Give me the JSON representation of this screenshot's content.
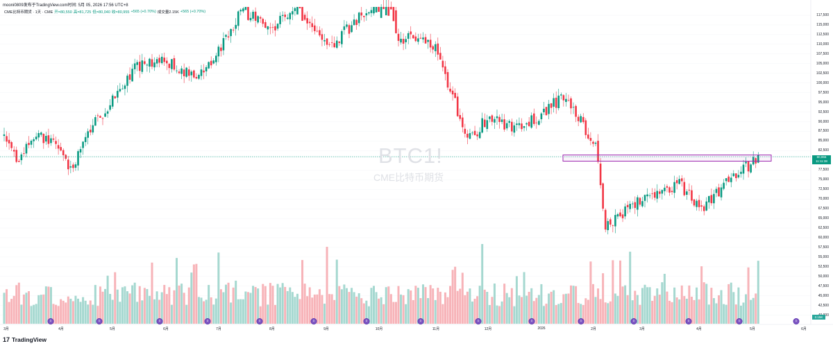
{
  "header": {
    "text": "mooni0809发布于TradingView.com时间: 5月 05, 2026 17:56 UTC+8"
  },
  "legend": {
    "symbol": "CME比特币期货 · 1天 · CME",
    "open": "开=80,550",
    "high": "高=81,725",
    "low": "低=80,040",
    "close": "收=80,955",
    "change": "+565 (+0.70%)",
    "volume": "成交量2.15K",
    "volume_change": "+565 (+0.70%)"
  },
  "watermark": {
    "symbol": "BTC1!",
    "description": "CME比特币期货"
  },
  "price_axis": {
    "ticks": [
      "117,500",
      "115,000",
      "112,500",
      "110,000",
      "107,500",
      "105,000",
      "102,500",
      "100,000",
      "97,500",
      "95,000",
      "92,500",
      "90,000",
      "87,500",
      "85,000",
      "82,500",
      "77,500",
      "75,000",
      "72,500",
      "70,000",
      "67,500",
      "65,000",
      "62,500",
      "60,000",
      "57,500",
      "55,000",
      "52,500",
      "50,000",
      "47,500",
      "45,000",
      "42,500",
      "40,000"
    ],
    "last_price": "80,955",
    "countdown": "11:11:38",
    "volume_value": "2.15K"
  },
  "time_axis": {
    "ticks": [
      "3月",
      "4月",
      "5月",
      "6月",
      "7月",
      "8月",
      "9月",
      "10月",
      "11月",
      "12月",
      "2026",
      "2月",
      "3月",
      "4月",
      "5月",
      "6月"
    ]
  },
  "events": {
    "badge_label": "D",
    "count": 16
  },
  "colors": {
    "up": "#089981",
    "down": "#f23645",
    "up_volume": "#a5d8d0",
    "down_volume": "#f7b3b8",
    "highlight_box": "#9c27b0",
    "event_badge": "#7e57c2"
  },
  "footer": {
    "brand": "TradingView"
  },
  "chart_data": {
    "type": "candlestick",
    "title": "CME比特币期货 · 1天 · CME",
    "ylabel": "",
    "ylim": [
      40000,
      120000
    ],
    "last_close": 80955,
    "highlight_range": [
      79800,
      81400
    ],
    "x": [
      "2025-03",
      "2025-04",
      "2025-05",
      "2025-06",
      "2025-07",
      "2025-08",
      "2025-09",
      "2025-10",
      "2025-11",
      "2025-12",
      "2026-01",
      "2026-02",
      "2026-03",
      "2026-04",
      "2026-05"
    ],
    "close_path": [
      {
        "x": "2025-03-01",
        "y": 86000
      },
      {
        "x": "2025-03-10",
        "y": 80000
      },
      {
        "x": "2025-03-20",
        "y": 86500
      },
      {
        "x": "2025-04-01",
        "y": 84000
      },
      {
        "x": "2025-04-08",
        "y": 77000
      },
      {
        "x": "2025-04-20",
        "y": 88000
      },
      {
        "x": "2025-05-01",
        "y": 95000
      },
      {
        "x": "2025-05-15",
        "y": 104000
      },
      {
        "x": "2025-06-01",
        "y": 106000
      },
      {
        "x": "2025-06-20",
        "y": 101000
      },
      {
        "x": "2025-07-01",
        "y": 108000
      },
      {
        "x": "2025-07-15",
        "y": 119000
      },
      {
        "x": "2025-08-01",
        "y": 114000
      },
      {
        "x": "2025-08-15",
        "y": 121000
      },
      {
        "x": "2025-09-01",
        "y": 109000
      },
      {
        "x": "2025-09-20",
        "y": 117000
      },
      {
        "x": "2025-10-06",
        "y": 124000
      },
      {
        "x": "2025-10-11",
        "y": 112000
      },
      {
        "x": "2025-11-01",
        "y": 110000
      },
      {
        "x": "2025-11-20",
        "y": 85000
      },
      {
        "x": "2025-12-01",
        "y": 91000
      },
      {
        "x": "2025-12-20",
        "y": 88000
      },
      {
        "x": "2026-01-14",
        "y": 97000
      },
      {
        "x": "2026-01-31",
        "y": 84000
      },
      {
        "x": "2026-02-06",
        "y": 63000
      },
      {
        "x": "2026-02-20",
        "y": 68000
      },
      {
        "x": "2026-03-05",
        "y": 71000
      },
      {
        "x": "2026-03-20",
        "y": 74000
      },
      {
        "x": "2026-04-01",
        "y": 67000
      },
      {
        "x": "2026-04-20",
        "y": 76000
      },
      {
        "x": "2026-05-05",
        "y": 80955
      }
    ]
  }
}
